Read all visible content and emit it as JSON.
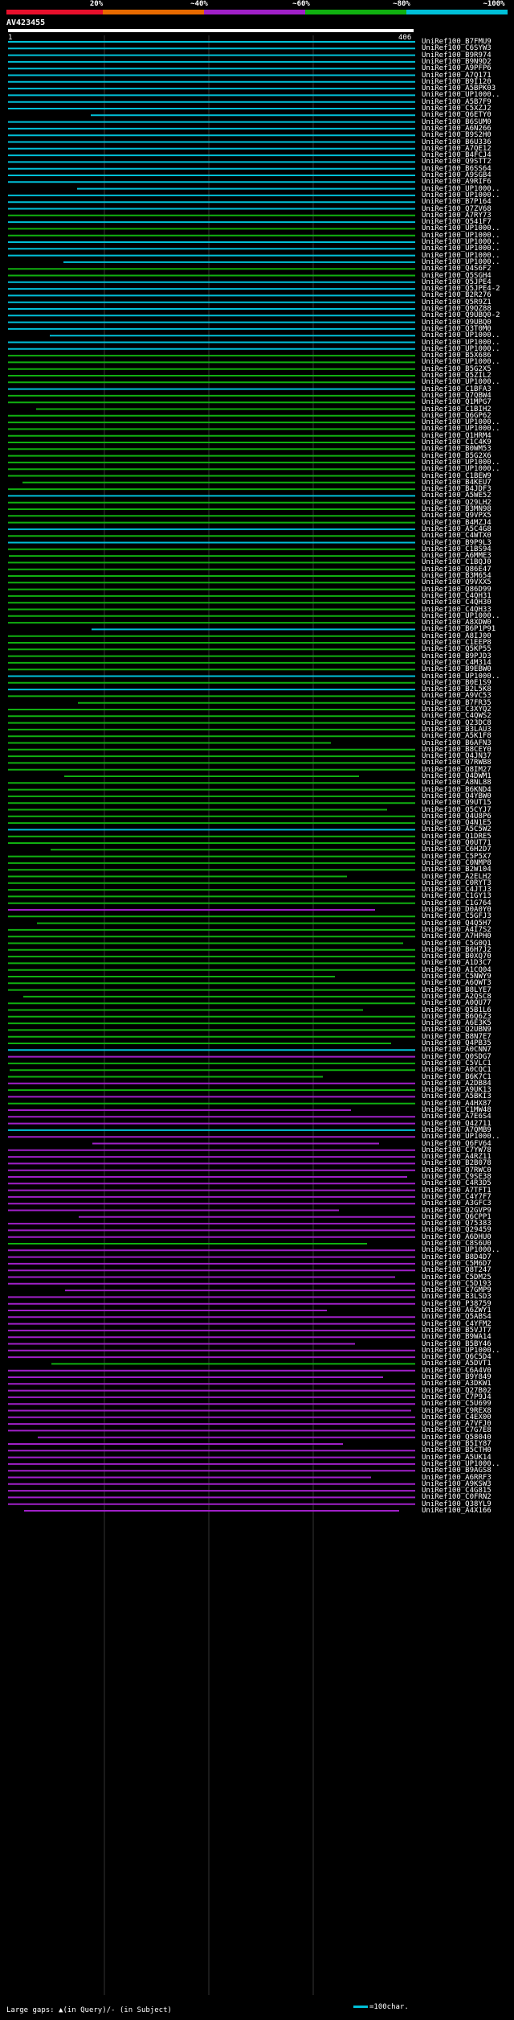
{
  "header": {
    "percent_labels": [
      "20%",
      "~40%",
      "~60%",
      "~80%",
      "~100%"
    ],
    "colors": {
      "lt20": "#e8102c",
      "p40": "#e86a00",
      "p60": "#a020c8",
      "p80": "#10b010",
      "p100": "#00c0d8",
      "bg": "#000000",
      "grid": "#333333",
      "gap": "#cccccc",
      "dot": "#ffffff"
    }
  },
  "query": {
    "name": "AV423455",
    "start": "1",
    "end": "406"
  },
  "hits": [
    {
      "id": "UniRef100_B7FMU9",
      "color": "#00c0d8"
    },
    {
      "id": "UniRef100_C6SYW3",
      "color": "#00c0d8"
    },
    {
      "id": "UniRef100_B9R974",
      "color": "#00c0d8"
    },
    {
      "id": "UniRef100_B9N9D2",
      "color": "#00c0d8"
    },
    {
      "id": "UniRef100_A9PFP6",
      "color": "#00c0d8"
    },
    {
      "id": "UniRef100_A7Q171",
      "color": "#00c0d8"
    },
    {
      "id": "UniRef100_B9I120",
      "color": "#00c0d8"
    },
    {
      "id": "UniRef100_A5BPK03",
      "color": "#00c0d8"
    },
    {
      "id": "UniRef100_UP1000..",
      "color": "#00c0d8"
    },
    {
      "id": "UniRef100_A5B7F9",
      "color": "#00c0d8"
    },
    {
      "id": "UniRef100_C5XZJ2",
      "color": "#00c0d8"
    },
    {
      "id": "UniRef100_Q6ETY0",
      "color": "#00c0d8"
    },
    {
      "id": "UniRef100_B6SUM0",
      "color": "#00c0d8"
    },
    {
      "id": "UniRef100_A6N266",
      "color": "#00c0d8"
    },
    {
      "id": "UniRef100_B9S2H0",
      "color": "#00c0d8"
    },
    {
      "id": "UniRef100_B6U336",
      "color": "#00c0d8"
    },
    {
      "id": "UniRef100_A7QE12",
      "color": "#00c0d8"
    },
    {
      "id": "UniRef100_B4FCJ4",
      "color": "#00c0d8"
    },
    {
      "id": "UniRef100_Q9STT2",
      "color": "#00c0d8"
    },
    {
      "id": "UniRef100_B6SS64",
      "color": "#00c0d8"
    },
    {
      "id": "UniRef100_A9SGB4",
      "color": "#00c0d8"
    },
    {
      "id": "UniRef100_A9RIF6",
      "color": "#00c0d8"
    },
    {
      "id": "UniRef100_UP1000..",
      "color": "#00c0d8"
    },
    {
      "id": "UniRef100_UP1000..",
      "color": "#00c0d8"
    },
    {
      "id": "UniRef100_B7P164",
      "color": "#00c0d8"
    },
    {
      "id": "UniRef100_Q7ZV68",
      "color": "#00c0d8"
    },
    {
      "id": "UniRef100_A7RY73",
      "color": "#10b010"
    },
    {
      "id": "UniRef100_Q541F7",
      "color": "#00c0d8"
    },
    {
      "id": "UniRef100_UP1000..",
      "color": "#10b010"
    },
    {
      "id": "UniRef100_UP1000..",
      "color": "#10b010"
    },
    {
      "id": "UniRef100_UP1000..",
      "color": "#00c0d8"
    },
    {
      "id": "UniRef100_UP1000..",
      "color": "#00c0d8"
    },
    {
      "id": "UniRef100_UP1000..",
      "color": "#00c0d8"
    },
    {
      "id": "UniRef100_UP1000..",
      "color": "#00c0d8"
    },
    {
      "id": "UniRef100_Q4S6F2",
      "color": "#10b010"
    },
    {
      "id": "UniRef100_Q5SGH4",
      "color": "#10b010"
    },
    {
      "id": "UniRef100_Q5JPE4",
      "color": "#00c0d8"
    },
    {
      "id": "UniRef100_Q5JPE4-2",
      "color": "#00c0d8"
    },
    {
      "id": "UniRef100_B2R276",
      "color": "#00c0d8"
    },
    {
      "id": "UniRef100_Q5R9Z1",
      "color": "#00c0d8"
    },
    {
      "id": "UniRef100_Q9QZ88",
      "color": "#00c0d8"
    },
    {
      "id": "UniRef100_Q9UBQ0-2",
      "color": "#00c0d8"
    },
    {
      "id": "UniRef100_Q9UBQ0",
      "color": "#00c0d8"
    },
    {
      "id": "UniRef100_Q3T0M0",
      "color": "#00c0d8"
    },
    {
      "id": "UniRef100_UP1000..",
      "color": "#00c0d8"
    },
    {
      "id": "UniRef100_UP1000..",
      "color": "#00c0d8"
    },
    {
      "id": "UniRef100_UP1000..",
      "color": "#00c0d8"
    },
    {
      "id": "UniRef100_B5X686",
      "color": "#10b010"
    },
    {
      "id": "UniRef100_UP1000..",
      "color": "#10b010"
    },
    {
      "id": "UniRef100_B5G2X5",
      "color": "#10b010"
    },
    {
      "id": "UniRef100_Q5ZIL2",
      "color": "#10b010"
    },
    {
      "id": "UniRef100_UP1000..",
      "color": "#10b010"
    },
    {
      "id": "UniRef100_C1BFA3",
      "color": "#00c0d8"
    },
    {
      "id": "UniRef100_Q7QBW4",
      "color": "#10b010"
    },
    {
      "id": "UniRef100_Q1MPG7",
      "color": "#10b010"
    },
    {
      "id": "UniRef100_C1BIH2",
      "color": "#10b010"
    },
    {
      "id": "UniRef100_Q6GP62",
      "color": "#10b010"
    },
    {
      "id": "UniRef100_UP1000..",
      "color": "#10b010"
    },
    {
      "id": "UniRef100_UP1000..",
      "color": "#10b010"
    },
    {
      "id": "UniRef100_Q1HRM4",
      "color": "#10b010"
    },
    {
      "id": "UniRef100_C1C4K9",
      "color": "#10b010"
    },
    {
      "id": "UniRef100_B0WM53",
      "color": "#10b010"
    },
    {
      "id": "UniRef100_B5G2X6",
      "color": "#10b010"
    },
    {
      "id": "UniRef100_UP1000..",
      "color": "#10b010"
    },
    {
      "id": "UniRef100_UP1000..",
      "color": "#10b010"
    },
    {
      "id": "UniRef100_C1BEW9",
      "color": "#10b010"
    },
    {
      "id": "UniRef100_B4KEU7",
      "color": "#10b010"
    },
    {
      "id": "UniRef100_B4JDF3",
      "color": "#10b010"
    },
    {
      "id": "UniRef100_A5WE52",
      "color": "#00c0d8"
    },
    {
      "id": "UniRef100_Q29LH2",
      "color": "#10b010"
    },
    {
      "id": "UniRef100_B3MN98",
      "color": "#10b010"
    },
    {
      "id": "UniRef100_Q9VPX5",
      "color": "#10b010"
    },
    {
      "id": "UniRef100_B4MZJ4",
      "color": "#10b010"
    },
    {
      "id": "UniRef100_A5C4G8",
      "color": "#00c0d8"
    },
    {
      "id": "UniRef100_C4WTX0",
      "color": "#10b010"
    },
    {
      "id": "UniRef100_B9P9L3",
      "color": "#00c0d8"
    },
    {
      "id": "UniRef100_C1BS94",
      "color": "#10b010"
    },
    {
      "id": "UniRef100_A6MME3",
      "color": "#10b010"
    },
    {
      "id": "UniRef100_C1BQJ0",
      "color": "#10b010"
    },
    {
      "id": "UniRef100_Q86E47",
      "color": "#10b010"
    },
    {
      "id": "UniRef100_B3M654",
      "color": "#10b010"
    },
    {
      "id": "UniRef100_Q9VXX5",
      "color": "#10b010"
    },
    {
      "id": "UniRef100_Q86D99",
      "color": "#10b010"
    },
    {
      "id": "UniRef100_C4QH31",
      "color": "#10b010"
    },
    {
      "id": "UniRef100_C4QH30",
      "color": "#10b010"
    },
    {
      "id": "UniRef100_C4QH33",
      "color": "#10b010"
    },
    {
      "id": "UniRef100_UP1000..",
      "color": "#10b010"
    },
    {
      "id": "UniRef100_A8XDW0",
      "color": "#10b010"
    },
    {
      "id": "UniRef100_B6P1P91",
      "color": "#00c0d8"
    },
    {
      "id": "UniRef100_A8IJ00",
      "color": "#10b010"
    },
    {
      "id": "UniRef100_C1EEP8",
      "color": "#10b010"
    },
    {
      "id": "UniRef100_Q5KP55",
      "color": "#10b010"
    },
    {
      "id": "UniRef100_B9PJD3",
      "color": "#10b010"
    },
    {
      "id": "UniRef100_C4M314",
      "color": "#10b010"
    },
    {
      "id": "UniRef100_B9EBW0",
      "color": "#10b010"
    },
    {
      "id": "UniRef100_UP1000..",
      "color": "#00c0d8"
    },
    {
      "id": "UniRef100_B0E1S9",
      "color": "#10b010"
    },
    {
      "id": "UniRef100_B2L5K8",
      "color": "#00c0d8"
    },
    {
      "id": "UniRef100_A9VC53",
      "color": "#10b010"
    },
    {
      "id": "UniRef100_B7FR35",
      "color": "#10b010"
    },
    {
      "id": "UniRef100_C3XYQ2",
      "color": "#10b010"
    },
    {
      "id": "UniRef100_C4QWS2",
      "color": "#10b010"
    },
    {
      "id": "UniRef100_Q23DC8",
      "color": "#10b010"
    },
    {
      "id": "UniRef100_B3LAU3",
      "color": "#10b010"
    },
    {
      "id": "UniRef100_A5K1F8",
      "color": "#10b010"
    },
    {
      "id": "UniRef100_B6AFN3",
      "color": "#10b010"
    },
    {
      "id": "UniRef100_B8CEY0",
      "color": "#10b010"
    },
    {
      "id": "UniRef100_Q4JN37",
      "color": "#10b010"
    },
    {
      "id": "UniRef100_Q7RWB8",
      "color": "#10b010"
    },
    {
      "id": "UniRef100_Q8IM27",
      "color": "#10b010"
    },
    {
      "id": "UniRef100_Q4DWM1",
      "color": "#10b010"
    },
    {
      "id": "UniRef100_A8NL88",
      "color": "#10b010"
    },
    {
      "id": "UniRef100_B6KND4",
      "color": "#10b010"
    },
    {
      "id": "UniRef100_Q4YBW0",
      "color": "#10b010"
    },
    {
      "id": "UniRef100_Q9UT15",
      "color": "#10b010"
    },
    {
      "id": "UniRef100_Q5CYJ7",
      "color": "#10b010"
    },
    {
      "id": "UniRef100_Q4U8P6",
      "color": "#10b010"
    },
    {
      "id": "UniRef100_Q4N1E5",
      "color": "#10b010"
    },
    {
      "id": "UniRef100_A5C5W2",
      "color": "#00c0d8"
    },
    {
      "id": "UniRef100_Q1DRE5",
      "color": "#10b010"
    },
    {
      "id": "UniRef100_Q0UT71",
      "color": "#10b010"
    },
    {
      "id": "UniRef100_C6H2D7",
      "color": "#10b010"
    },
    {
      "id": "UniRef100_C5P5X7",
      "color": "#10b010"
    },
    {
      "id": "UniRef100_C0NMP8",
      "color": "#10b010"
    },
    {
      "id": "UniRef100_B2W104",
      "color": "#10b010"
    },
    {
      "id": "UniRef100_A2ELH2",
      "color": "#10b010"
    },
    {
      "id": "UniRef100_C0RYT3",
      "color": "#10b010"
    },
    {
      "id": "UniRef100_C4JTJ3",
      "color": "#10b010"
    },
    {
      "id": "UniRef100_C1GY13",
      "color": "#10b010"
    },
    {
      "id": "UniRef100_C1G764",
      "color": "#10b010"
    },
    {
      "id": "UniRef100_D0A0Y0",
      "color": "#a020c8"
    },
    {
      "id": "UniRef100_C5GFJ3",
      "color": "#10b010"
    },
    {
      "id": "UniRef100_Q4Q5H7",
      "color": "#10b010"
    },
    {
      "id": "UniRef100_A4I7S2",
      "color": "#10b010"
    },
    {
      "id": "UniRef100_A7HPH0",
      "color": "#10b010"
    },
    {
      "id": "UniRef100_C5G0Q1",
      "color": "#10b010"
    },
    {
      "id": "UniRef100_B6H7J2",
      "color": "#10b010"
    },
    {
      "id": "UniRef100_B0XQ70",
      "color": "#10b010"
    },
    {
      "id": "UniRef100_A1D3C7",
      "color": "#10b010"
    },
    {
      "id": "UniRef100_A1CQ04",
      "color": "#10b010"
    },
    {
      "id": "UniRef100_C5NWY9",
      "color": "#10b010"
    },
    {
      "id": "UniRef100_A6QWT3",
      "color": "#10b010"
    },
    {
      "id": "UniRef100_B8LYE7",
      "color": "#10b010"
    },
    {
      "id": "UniRef100_A2QSC8",
      "color": "#10b010"
    },
    {
      "id": "UniRef100_A0QU77",
      "color": "#10b010"
    },
    {
      "id": "UniRef100_Q5B1L6",
      "color": "#10b010"
    },
    {
      "id": "UniRef100_B6Q6Z3",
      "color": "#10b010"
    },
    {
      "id": "UniRef100_A6E3K5",
      "color": "#10b010"
    },
    {
      "id": "UniRef100_Q2UBN9",
      "color": "#10b010"
    },
    {
      "id": "UniRef100_B8N7E7",
      "color": "#10b010"
    },
    {
      "id": "UniRef100_Q4PB35",
      "color": "#10b010"
    },
    {
      "id": "UniRef100_A0CNN7",
      "color": "#00c0d8"
    },
    {
      "id": "UniRef100_Q0SDG7",
      "color": "#a020c8"
    },
    {
      "id": "UniRef100_C5VLC1",
      "color": "#10b010"
    },
    {
      "id": "UniRef100_A0CQC1",
      "color": "#10b010"
    },
    {
      "id": "UniRef100_B6K7C1",
      "color": "#10b010"
    },
    {
      "id": "UniRef100_A2DB84",
      "color": "#a020c8"
    },
    {
      "id": "UniRef100_A9UK13",
      "color": "#10b010"
    },
    {
      "id": "UniRef100_A5BKI3",
      "color": "#a020c8"
    },
    {
      "id": "UniRef100_A4HX87",
      "color": "#10b010"
    },
    {
      "id": "UniRef100_C1MW48",
      "color": "#a020c8"
    },
    {
      "id": "UniRef100_A7E6S4",
      "color": "#a020c8"
    },
    {
      "id": "UniRef100_Q42711",
      "color": "#a020c8"
    },
    {
      "id": "UniRef100_A7QMB9",
      "color": "#00c0d8"
    },
    {
      "id": "UniRef100_UP1000..",
      "color": "#a020c8"
    },
    {
      "id": "UniRef100_Q6FV64",
      "color": "#a020c8"
    },
    {
      "id": "UniRef100_C7YW78",
      "color": "#a020c8"
    },
    {
      "id": "UniRef100_A4RZ11",
      "color": "#a020c8"
    },
    {
      "id": "UniRef100_B2B078",
      "color": "#a020c8"
    },
    {
      "id": "UniRef100_Q7RWC0",
      "color": "#a020c8"
    },
    {
      "id": "UniRef100_C9SE38",
      "color": "#a020c8"
    },
    {
      "id": "UniRef100_C4R3D5",
      "color": "#a020c8"
    },
    {
      "id": "UniRef100_A7TFT1",
      "color": "#a020c8"
    },
    {
      "id": "UniRef100_C4Y7F7",
      "color": "#a020c8"
    },
    {
      "id": "UniRef100_A3GFC3",
      "color": "#a020c8"
    },
    {
      "id": "UniRef100_Q2GVP9",
      "color": "#a020c8"
    },
    {
      "id": "UniRef100_Q6CPP1",
      "color": "#a020c8"
    },
    {
      "id": "UniRef100_Q75383",
      "color": "#a020c8"
    },
    {
      "id": "UniRef100_Q29459",
      "color": "#a020c8"
    },
    {
      "id": "UniRef100_A6DHU0",
      "color": "#a020c8"
    },
    {
      "id": "UniRef100_C8S6U0",
      "color": "#10b010"
    },
    {
      "id": "UniRef100_UP1000..",
      "color": "#a020c8"
    },
    {
      "id": "UniRef100_B8D4D7",
      "color": "#a020c8"
    },
    {
      "id": "UniRef100_C5M6D7",
      "color": "#a020c8"
    },
    {
      "id": "UniRef100_Q8T247",
      "color": "#a020c8"
    },
    {
      "id": "UniRef100_C5DM25",
      "color": "#a020c8"
    },
    {
      "id": "UniRef100_C5D193",
      "color": "#a020c8"
    },
    {
      "id": "UniRef100_C7GMP9",
      "color": "#a020c8"
    },
    {
      "id": "UniRef100_B3LSD3",
      "color": "#a020c8"
    },
    {
      "id": "UniRef100_P38759",
      "color": "#a020c8"
    },
    {
      "id": "UniRef100_A6ZWY1",
      "color": "#a020c8"
    },
    {
      "id": "UniRef100_Q5ABS4",
      "color": "#a020c8"
    },
    {
      "id": "UniRef100_C4YFM2",
      "color": "#a020c8"
    },
    {
      "id": "UniRef100_B5VJT7",
      "color": "#a020c8"
    },
    {
      "id": "UniRef100_B9WA14",
      "color": "#a020c8"
    },
    {
      "id": "UniRef100_B5BY46",
      "color": "#a020c8"
    },
    {
      "id": "UniRef100_UP1000..",
      "color": "#a020c8"
    },
    {
      "id": "UniRef100_Q6C5D4",
      "color": "#a020c8"
    },
    {
      "id": "UniRef100_A5DVT1",
      "color": "#10b010"
    },
    {
      "id": "UniRef100_C6A4V0",
      "color": "#a020c8"
    },
    {
      "id": "UniRef100_B9Y849",
      "color": "#a020c8"
    },
    {
      "id": "UniRef100_A3DKW1",
      "color": "#a020c8"
    },
    {
      "id": "UniRef100_Q27B02",
      "color": "#a020c8"
    },
    {
      "id": "UniRef100_C7P9J4",
      "color": "#a020c8"
    },
    {
      "id": "UniRef100_C5U699",
      "color": "#a020c8"
    },
    {
      "id": "UniRef100_C9REX8",
      "color": "#a020c8"
    },
    {
      "id": "UniRef100_C4EX00",
      "color": "#a020c8"
    },
    {
      "id": "UniRef100_A7VFJ0",
      "color": "#a020c8"
    },
    {
      "id": "UniRef100_C7G7E8",
      "color": "#a020c8"
    },
    {
      "id": "UniRef100_Q58040",
      "color": "#a020c8"
    },
    {
      "id": "UniRef100_B5IY87",
      "color": "#a020c8"
    },
    {
      "id": "UniRef100_B5CTH0",
      "color": "#a020c8"
    },
    {
      "id": "UniRef100_A5UK14",
      "color": "#a020c8"
    },
    {
      "id": "UniRef100_UP1000..",
      "color": "#a020c8"
    },
    {
      "id": "UniRef100_B9AGS8",
      "color": "#a020c8"
    },
    {
      "id": "UniRef100_A6RRF3",
      "color": "#a020c8"
    },
    {
      "id": "UniRef100_A9KSW3",
      "color": "#a020c8"
    },
    {
      "id": "UniRef100_C4G815",
      "color": "#a020c8"
    },
    {
      "id": "UniRef100_C0FRN2",
      "color": "#a020c8"
    },
    {
      "id": "UniRef100_Q38YL9",
      "color": "#a020c8"
    },
    {
      "id": "UniRef100_A4X166",
      "color": "#a020c8"
    }
  ],
  "legend": {
    "text": "Large gaps: ▲(in Query)/- (in Subject)",
    "scale_text": "=100char."
  }
}
